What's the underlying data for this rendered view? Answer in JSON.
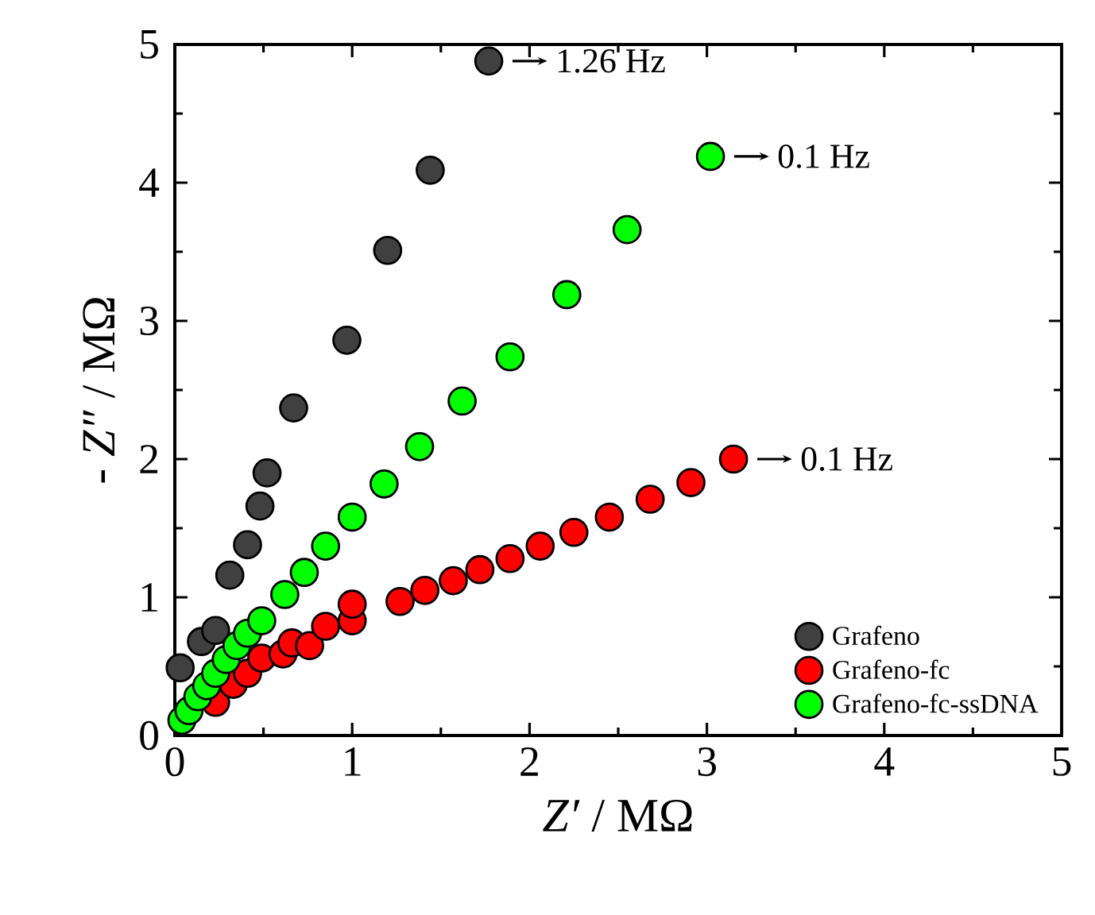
{
  "chart_data": {
    "type": "scatter",
    "xlabel": "*Z′* / MΩ",
    "ylabel": "- *Z″* / MΩ",
    "xlim": [
      0,
      5
    ],
    "ylim": [
      0,
      5
    ],
    "xticks": [
      0,
      1,
      2,
      3,
      4,
      5
    ],
    "yticks": [
      0,
      1,
      2,
      3,
      4,
      5
    ],
    "marker": "circle",
    "legend": "bottom right",
    "grid": false,
    "annotations": [
      {
        "text": "1.26 Hz",
        "x": 1.77,
        "y": 4.88
      },
      {
        "text": "0.1 Hz",
        "x": 3.02,
        "y": 4.19
      },
      {
        "text": "0.1 Hz",
        "x": 3.15,
        "y": 2.0
      }
    ],
    "series": [
      {
        "name": "Grafeno",
        "color": "#404040",
        "x": [
          0.03,
          0.15,
          0.23,
          0.31,
          0.41,
          0.48,
          0.52,
          0.67,
          0.97,
          1.2,
          1.44,
          1.77
        ],
        "values": [
          0.49,
          0.68,
          0.76,
          1.16,
          1.38,
          1.66,
          1.9,
          2.37,
          2.86,
          3.51,
          4.09,
          4.88
        ]
      },
      {
        "name": "Grafeno-fc",
        "color": "#ff0000",
        "x": [
          0.23,
          0.33,
          0.41,
          0.49,
          0.61,
          0.66,
          0.76,
          0.85,
          1.0,
          1.0,
          1.27,
          1.41,
          1.57,
          1.72,
          1.89,
          2.06,
          2.25,
          2.45,
          2.68,
          2.91,
          3.15
        ],
        "values": [
          0.24,
          0.37,
          0.45,
          0.56,
          0.59,
          0.67,
          0.65,
          0.79,
          0.83,
          0.95,
          0.97,
          1.05,
          1.12,
          1.2,
          1.28,
          1.37,
          1.47,
          1.58,
          1.71,
          1.83,
          2.0
        ]
      },
      {
        "name": "Grafeno-fc-ssDNA",
        "color": "#00ff00",
        "x": [
          0.04,
          0.08,
          0.13,
          0.18,
          0.23,
          0.29,
          0.35,
          0.41,
          0.49,
          0.62,
          0.73,
          0.85,
          1.0,
          1.18,
          1.38,
          1.62,
          1.89,
          2.21,
          2.55,
          3.02
        ],
        "values": [
          0.11,
          0.18,
          0.28,
          0.36,
          0.45,
          0.55,
          0.65,
          0.74,
          0.83,
          1.02,
          1.18,
          1.37,
          1.58,
          1.82,
          2.09,
          2.42,
          2.74,
          3.19,
          3.66,
          4.19
        ]
      }
    ]
  }
}
